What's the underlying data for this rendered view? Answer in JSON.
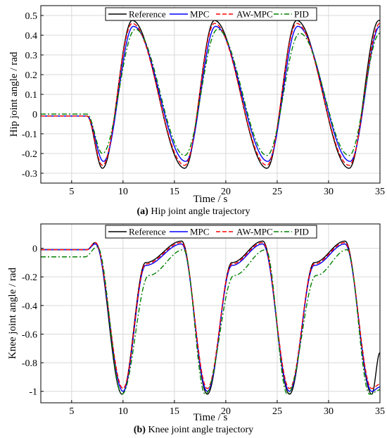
{
  "chart_data": [
    {
      "type": "line",
      "caption_tag": "(a)",
      "caption_text": " Hip joint angle trajectory",
      "xlabel": "Time / s",
      "ylabel": "Hip joint angle / rad",
      "xlim": [
        2,
        35
      ],
      "ylim": [
        -0.35,
        0.55
      ],
      "xticks": [
        5,
        10,
        15,
        20,
        25,
        30,
        35
      ],
      "yticks": [
        -0.3,
        -0.2,
        -0.1,
        0,
        0.1,
        0.2,
        0.3,
        0.4,
        0.5
      ],
      "yticklabels": [
        "-0.3",
        "-0.2",
        "-0.1",
        "0",
        "0.1",
        "0.2",
        "0.3",
        "0.4",
        "0.5"
      ],
      "grid": true,
      "legend_position": "top",
      "series": [
        {
          "name": "Reference",
          "color": "#000000",
          "dash": "solid",
          "x": [
            2,
            6.5,
            8,
            10.9,
            16,
            18.9,
            24,
            26.9,
            32,
            34.9,
            35
          ],
          "y": [
            -0.01,
            -0.01,
            -0.275,
            0.475,
            -0.275,
            0.475,
            -0.275,
            0.475,
            -0.275,
            0.475,
            0.474
          ]
        },
        {
          "name": "MPC",
          "color": "#0000ff",
          "dash": "solid",
          "x": [
            2,
            6.5,
            8.1,
            11.0,
            16.1,
            19.0,
            24.1,
            27.0,
            32.1,
            35
          ],
          "y": [
            -0.01,
            -0.01,
            -0.24,
            0.445,
            -0.24,
            0.445,
            -0.24,
            0.445,
            -0.24,
            0.445
          ]
        },
        {
          "name": "AW-MPC",
          "color": "#ff0000",
          "dash": "dashed",
          "x": [
            2,
            6.5,
            8.0,
            10.9,
            16.0,
            18.9,
            24.0,
            26.9,
            32.0,
            35
          ],
          "y": [
            -0.01,
            -0.01,
            -0.26,
            0.46,
            -0.26,
            0.46,
            -0.26,
            0.46,
            -0.26,
            0.46
          ]
        },
        {
          "name": "PID",
          "color": "#008000",
          "dash": "dashdot",
          "x": [
            2,
            6.5,
            8.0,
            11.2,
            16.0,
            19.2,
            24.0,
            27.2,
            32.0,
            35
          ],
          "y": [
            0.0,
            0.0,
            -0.2,
            0.43,
            -0.21,
            0.43,
            -0.21,
            0.41,
            -0.21,
            0.41
          ]
        }
      ]
    },
    {
      "type": "line",
      "caption_tag": "(b)",
      "caption_text": " Knee joint angle trajectory",
      "xlabel": "Time / s",
      "ylabel": "Knee joint angle / rad",
      "xlim": [
        2,
        35
      ],
      "ylim": [
        -1.08,
        0.17
      ],
      "xticks": [
        5,
        10,
        15,
        20,
        25,
        30,
        35
      ],
      "yticks": [
        -1,
        -0.8,
        -0.6,
        -0.4,
        -0.2,
        0
      ],
      "yticklabels": [
        "-1",
        "-0.8",
        "-0.6",
        "-0.4",
        "-0.2",
        "0"
      ],
      "grid": true,
      "legend_position": "top",
      "series": [
        {
          "name": "Reference",
          "color": "#000000",
          "dash": "solid",
          "x": [
            2,
            6.5,
            7.3,
            9.9,
            12.2,
            15.7,
            18.2,
            20.6,
            23.6,
            26.2,
            28.6,
            31.6,
            34.2,
            35
          ],
          "y": [
            -0.01,
            -0.01,
            0.04,
            -1.02,
            -0.1,
            0.05,
            -1.02,
            -0.1,
            0.05,
            -1.02,
            -0.1,
            0.05,
            -1.02,
            -0.73
          ]
        },
        {
          "name": "MPC",
          "color": "#0000ff",
          "dash": "solid",
          "x": [
            2,
            6.5,
            7.3,
            10.0,
            12.2,
            15.7,
            18.2,
            20.6,
            23.6,
            26.2,
            28.6,
            31.6,
            34.2,
            35
          ],
          "y": [
            -0.01,
            -0.01,
            0.03,
            -1.0,
            -0.12,
            0.03,
            -1.0,
            -0.12,
            0.03,
            -1.0,
            -0.12,
            0.03,
            -1.0,
            -0.97
          ]
        },
        {
          "name": "AW-MPC",
          "color": "#ff0000",
          "dash": "dashed",
          "x": [
            2,
            6.5,
            7.3,
            10.0,
            12.2,
            15.7,
            18.2,
            20.6,
            23.6,
            26.2,
            28.6,
            31.6,
            34.2,
            35
          ],
          "y": [
            -0.01,
            -0.01,
            0.04,
            -0.98,
            -0.11,
            0.04,
            -0.98,
            -0.11,
            0.04,
            -0.98,
            -0.11,
            0.04,
            -0.98,
            -0.95
          ]
        },
        {
          "name": "PID",
          "color": "#008000",
          "dash": "dashdot",
          "x": [
            2,
            6.3,
            7.5,
            9.9,
            12.5,
            15.9,
            18.0,
            20.8,
            23.9,
            26.0,
            28.8,
            31.8,
            34.0,
            35
          ],
          "y": [
            -0.06,
            -0.06,
            0.01,
            -1.02,
            -0.19,
            -0.01,
            -1.02,
            -0.19,
            -0.01,
            -1.02,
            -0.19,
            -0.01,
            -1.02,
            -0.99
          ]
        }
      ]
    }
  ]
}
